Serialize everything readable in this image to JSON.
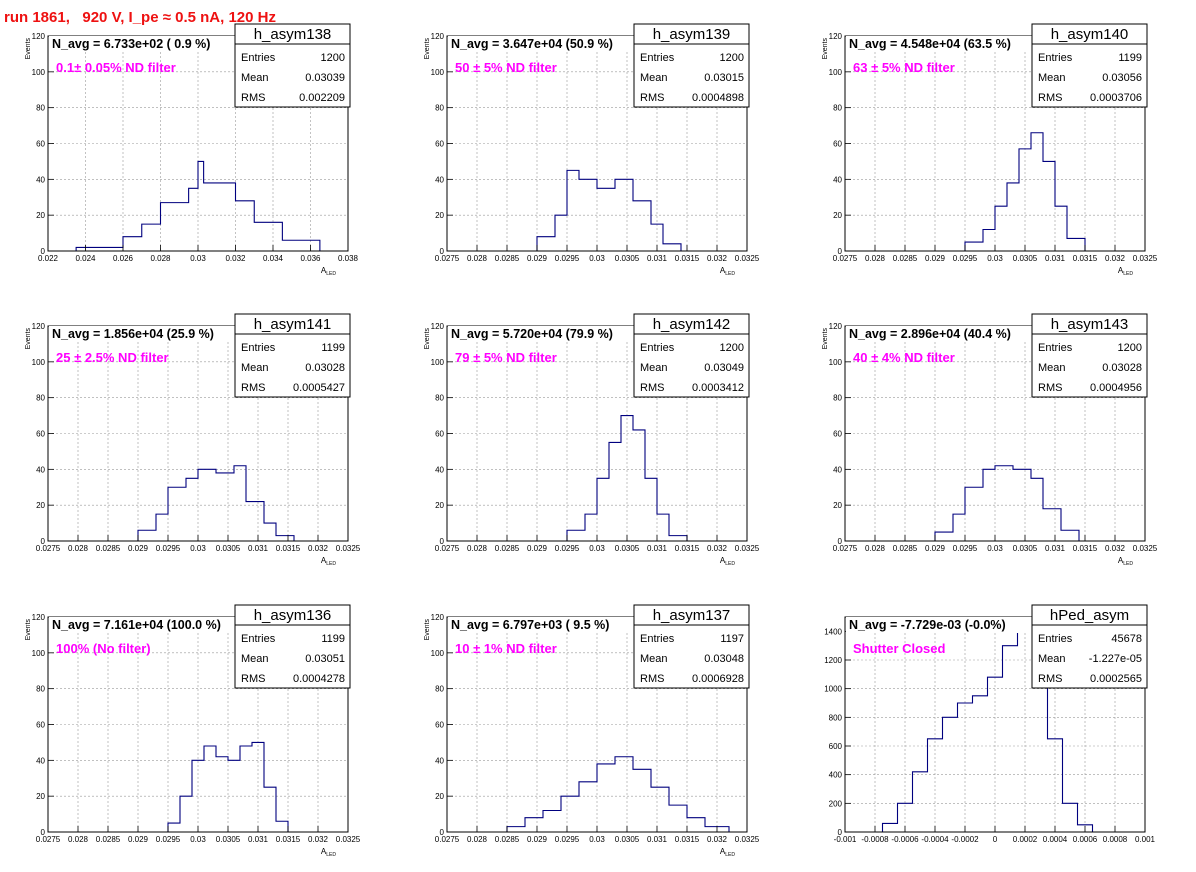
{
  "page_title": "run 1861,   920 V, I_pe ≈ 0.5 nA, 120 Hz",
  "colors": {
    "histogram": "#00007f",
    "annotation": "#ff00ff",
    "title": "#ee1111",
    "frame": "#000000",
    "grid": "#9a9a9a"
  },
  "chart_data": [
    {
      "type": "histogram",
      "name": "h_asym138",
      "title": "N_avg = 6.733e+02 ( 0.9 %)",
      "annotation": "0.1± 0.05% ND filter",
      "stats": {
        "entries_label": "Entries",
        "entries": "1200",
        "mean_label": "Mean",
        "mean": "0.03039",
        "rms_label": "RMS",
        "rms": "0.002209"
      },
      "xlabel": "A",
      "xlabel_sub": "LED",
      "ylabel": "Events",
      "xlim": [
        0.022,
        0.038
      ],
      "ylim": [
        0,
        120
      ],
      "grid": true,
      "xticks": [
        "0.022",
        "0.024",
        "0.026",
        "0.028",
        "0.03",
        "0.032",
        "0.034",
        "0.036",
        "0.038"
      ],
      "yticks": [
        "0",
        "20",
        "40",
        "60",
        "80",
        "100",
        "120"
      ],
      "bin_edges": [
        0.0235,
        0.026,
        0.027,
        0.028,
        0.0295,
        0.03,
        0.0303,
        0.032,
        0.033,
        0.0345,
        0.0365
      ],
      "counts": [
        2,
        8,
        15,
        27,
        35,
        50,
        38,
        28,
        16,
        6
      ]
    },
    {
      "type": "histogram",
      "name": "h_asym139",
      "title": "N_avg = 3.647e+04 (50.9 %)",
      "annotation": "50 ± 5% ND filter",
      "stats": {
        "entries_label": "Entries",
        "entries": "1200",
        "mean_label": "Mean",
        "mean": "0.03015",
        "rms_label": "RMS",
        "rms": "0.0004898"
      },
      "xlabel": "A",
      "xlabel_sub": "LED",
      "ylabel": "Events",
      "xlim": [
        0.0275,
        0.0325
      ],
      "ylim": [
        0,
        120
      ],
      "grid": true,
      "xticks": [
        "0.0275",
        "0.028",
        "0.0285",
        "0.029",
        "0.0295",
        "0.03",
        "0.0305",
        "0.031",
        "0.0315",
        "0.032",
        "0.0325"
      ],
      "yticks": [
        "0",
        "20",
        "40",
        "60",
        "80",
        "100",
        "120"
      ],
      "bin_edges": [
        0.029,
        0.0293,
        0.0295,
        0.0297,
        0.03,
        0.0303,
        0.0306,
        0.0309,
        0.0311,
        0.0314
      ],
      "counts": [
        8,
        20,
        45,
        40,
        35,
        40,
        28,
        15,
        4
      ]
    },
    {
      "type": "histogram",
      "name": "h_asym140",
      "title": "N_avg = 4.548e+04 (63.5 %)",
      "annotation": "63 ± 5% ND filter",
      "stats": {
        "entries_label": "Entries",
        "entries": "1199",
        "mean_label": "Mean",
        "mean": "0.03056",
        "rms_label": "RMS",
        "rms": "0.0003706"
      },
      "xlabel": "A",
      "xlabel_sub": "LED",
      "ylabel": "Events",
      "xlim": [
        0.0275,
        0.0325
      ],
      "ylim": [
        0,
        120
      ],
      "grid": true,
      "xticks": [
        "0.0275",
        "0.028",
        "0.0285",
        "0.029",
        "0.0295",
        "0.03",
        "0.0305",
        "0.031",
        "0.0315",
        "0.032",
        "0.0325"
      ],
      "yticks": [
        "0",
        "20",
        "40",
        "60",
        "80",
        "100",
        "120"
      ],
      "bin_edges": [
        0.0295,
        0.0298,
        0.03,
        0.0302,
        0.0304,
        0.0306,
        0.0308,
        0.031,
        0.0312,
        0.0315
      ],
      "counts": [
        5,
        12,
        25,
        38,
        57,
        66,
        50,
        25,
        7
      ]
    },
    {
      "type": "histogram",
      "name": "h_asym141",
      "title": "N_avg = 1.856e+04 (25.9 %)",
      "annotation": "25 ± 2.5% ND filter",
      "stats": {
        "entries_label": "Entries",
        "entries": "1199",
        "mean_label": "Mean",
        "mean": "0.03028",
        "rms_label": "RMS",
        "rms": "0.0005427"
      },
      "xlabel": "A",
      "xlabel_sub": "LED",
      "ylabel": "Events",
      "xlim": [
        0.0275,
        0.0325
      ],
      "ylim": [
        0,
        120
      ],
      "grid": true,
      "xticks": [
        "0.0275",
        "0.028",
        "0.0285",
        "0.029",
        "0.0295",
        "0.03",
        "0.0305",
        "0.031",
        "0.0315",
        "0.032",
        "0.0325"
      ],
      "yticks": [
        "0",
        "20",
        "40",
        "60",
        "80",
        "100",
        "120"
      ],
      "bin_edges": [
        0.029,
        0.0293,
        0.0295,
        0.0298,
        0.03,
        0.0303,
        0.0306,
        0.0308,
        0.0311,
        0.0313,
        0.0316
      ],
      "counts": [
        6,
        15,
        30,
        35,
        40,
        38,
        42,
        22,
        10,
        3
      ]
    },
    {
      "type": "histogram",
      "name": "h_asym142",
      "title": "N_avg = 5.720e+04 (79.9 %)",
      "annotation": "79 ± 5% ND filter",
      "stats": {
        "entries_label": "Entries",
        "entries": "1200",
        "mean_label": "Mean",
        "mean": "0.03049",
        "rms_label": "RMS",
        "rms": "0.0003412"
      },
      "xlabel": "A",
      "xlabel_sub": "LED",
      "ylabel": "Events",
      "xlim": [
        0.0275,
        0.0325
      ],
      "ylim": [
        0,
        120
      ],
      "grid": true,
      "xticks": [
        "0.0275",
        "0.028",
        "0.0285",
        "0.029",
        "0.0295",
        "0.03",
        "0.0305",
        "0.031",
        "0.0315",
        "0.032",
        "0.0325"
      ],
      "yticks": [
        "0",
        "20",
        "40",
        "60",
        "80",
        "100",
        "120"
      ],
      "bin_edges": [
        0.0295,
        0.0298,
        0.03,
        0.0302,
        0.0304,
        0.0306,
        0.0308,
        0.031,
        0.0312,
        0.0315
      ],
      "counts": [
        6,
        15,
        35,
        55,
        70,
        62,
        35,
        15,
        3
      ]
    },
    {
      "type": "histogram",
      "name": "h_asym143",
      "title": "N_avg = 2.896e+04 (40.4 %)",
      "annotation": "40 ± 4% ND filter",
      "stats": {
        "entries_label": "Entries",
        "entries": "1200",
        "mean_label": "Mean",
        "mean": "0.03028",
        "rms_label": "RMS",
        "rms": "0.0004956"
      },
      "xlabel": "A",
      "xlabel_sub": "LED",
      "ylabel": "Events",
      "xlim": [
        0.0275,
        0.0325
      ],
      "ylim": [
        0,
        120
      ],
      "grid": true,
      "xticks": [
        "0.0275",
        "0.028",
        "0.0285",
        "0.029",
        "0.0295",
        "0.03",
        "0.0305",
        "0.031",
        "0.0315",
        "0.032",
        "0.0325"
      ],
      "yticks": [
        "0",
        "20",
        "40",
        "60",
        "80",
        "100",
        "120"
      ],
      "bin_edges": [
        0.029,
        0.0293,
        0.0295,
        0.0298,
        0.03,
        0.0303,
        0.0306,
        0.0308,
        0.0311,
        0.0314
      ],
      "counts": [
        5,
        15,
        30,
        40,
        42,
        40,
        35,
        18,
        6
      ]
    },
    {
      "type": "histogram",
      "name": "h_asym136",
      "title": "N_avg = 7.161e+04 (100.0 %)",
      "annotation": "100% (No filter)",
      "stats": {
        "entries_label": "Entries",
        "entries": "1199",
        "mean_label": "Mean",
        "mean": "0.03051",
        "rms_label": "RMS",
        "rms": "0.0004278"
      },
      "xlabel": "A",
      "xlabel_sub": "LED",
      "ylabel": "Events",
      "xlim": [
        0.0275,
        0.0325
      ],
      "ylim": [
        0,
        120
      ],
      "grid": true,
      "xticks": [
        "0.0275",
        "0.028",
        "0.0285",
        "0.029",
        "0.0295",
        "0.03",
        "0.0305",
        "0.031",
        "0.0315",
        "0.032",
        "0.0325"
      ],
      "yticks": [
        "0",
        "20",
        "40",
        "60",
        "80",
        "100",
        "120"
      ],
      "bin_edges": [
        0.0295,
        0.0297,
        0.0299,
        0.0301,
        0.0303,
        0.0305,
        0.0307,
        0.0309,
        0.0311,
        0.0313,
        0.0315
      ],
      "counts": [
        5,
        20,
        40,
        48,
        42,
        40,
        48,
        50,
        25,
        6
      ]
    },
    {
      "type": "histogram",
      "name": "h_asym137",
      "title": "N_avg = 6.797e+03 ( 9.5 %)",
      "annotation": "10 ± 1% ND filter",
      "stats": {
        "entries_label": "Entries",
        "entries": "1197",
        "mean_label": "Mean",
        "mean": "0.03048",
        "rms_label": "RMS",
        "rms": "0.0006928"
      },
      "xlabel": "A",
      "xlabel_sub": "LED",
      "ylabel": "Events",
      "xlim": [
        0.0275,
        0.0325
      ],
      "ylim": [
        0,
        120
      ],
      "grid": true,
      "xticks": [
        "0.0275",
        "0.028",
        "0.0285",
        "0.029",
        "0.0295",
        "0.03",
        "0.0305",
        "0.031",
        "0.0315",
        "0.032",
        "0.0325"
      ],
      "yticks": [
        "0",
        "20",
        "40",
        "60",
        "80",
        "100",
        "120"
      ],
      "bin_edges": [
        0.0285,
        0.0288,
        0.0291,
        0.0294,
        0.0297,
        0.03,
        0.0303,
        0.0306,
        0.0309,
        0.0312,
        0.0315,
        0.0318,
        0.0322
      ],
      "counts": [
        3,
        8,
        12,
        20,
        28,
        38,
        42,
        35,
        25,
        15,
        8,
        3
      ]
    },
    {
      "type": "histogram",
      "name": "hPed_asym",
      "title": "N_avg = -7.729e-03 (-0.0%)",
      "annotation": "Shutter Closed",
      "stats": {
        "entries_label": "Entries",
        "entries": "45678",
        "mean_label": "Mean",
        "mean": "-1.227e-05",
        "rms_label": "RMS",
        "rms": "0.0002565"
      },
      "xlabel": "",
      "xlabel_sub": "",
      "ylabel": "",
      "xlim": [
        -0.001,
        0.001
      ],
      "ylim": [
        0,
        1500
      ],
      "grid": true,
      "xticks": [
        "-0.001",
        "-0.0008",
        "-0.0006",
        "-0.0004",
        "-0.0002",
        "0",
        "0.0002",
        "0.0004",
        "0.0006",
        "0.0008",
        "0.001"
      ],
      "yticks": [
        "0",
        "200",
        "400",
        "600",
        "800",
        "1000",
        "1200",
        "1400"
      ],
      "bin_edges": [
        -0.00075,
        -0.00065,
        -0.00055,
        -0.00045,
        -0.00035,
        -0.00025,
        -0.00015,
        -5e-05,
        5e-05,
        0.00015,
        0.00025,
        0.00035,
        0.00045,
        0.00055,
        0.00065
      ],
      "counts": [
        60,
        200,
        420,
        650,
        800,
        900,
        950,
        1080,
        1300,
        1480,
        1250,
        650,
        200,
        50
      ]
    }
  ]
}
